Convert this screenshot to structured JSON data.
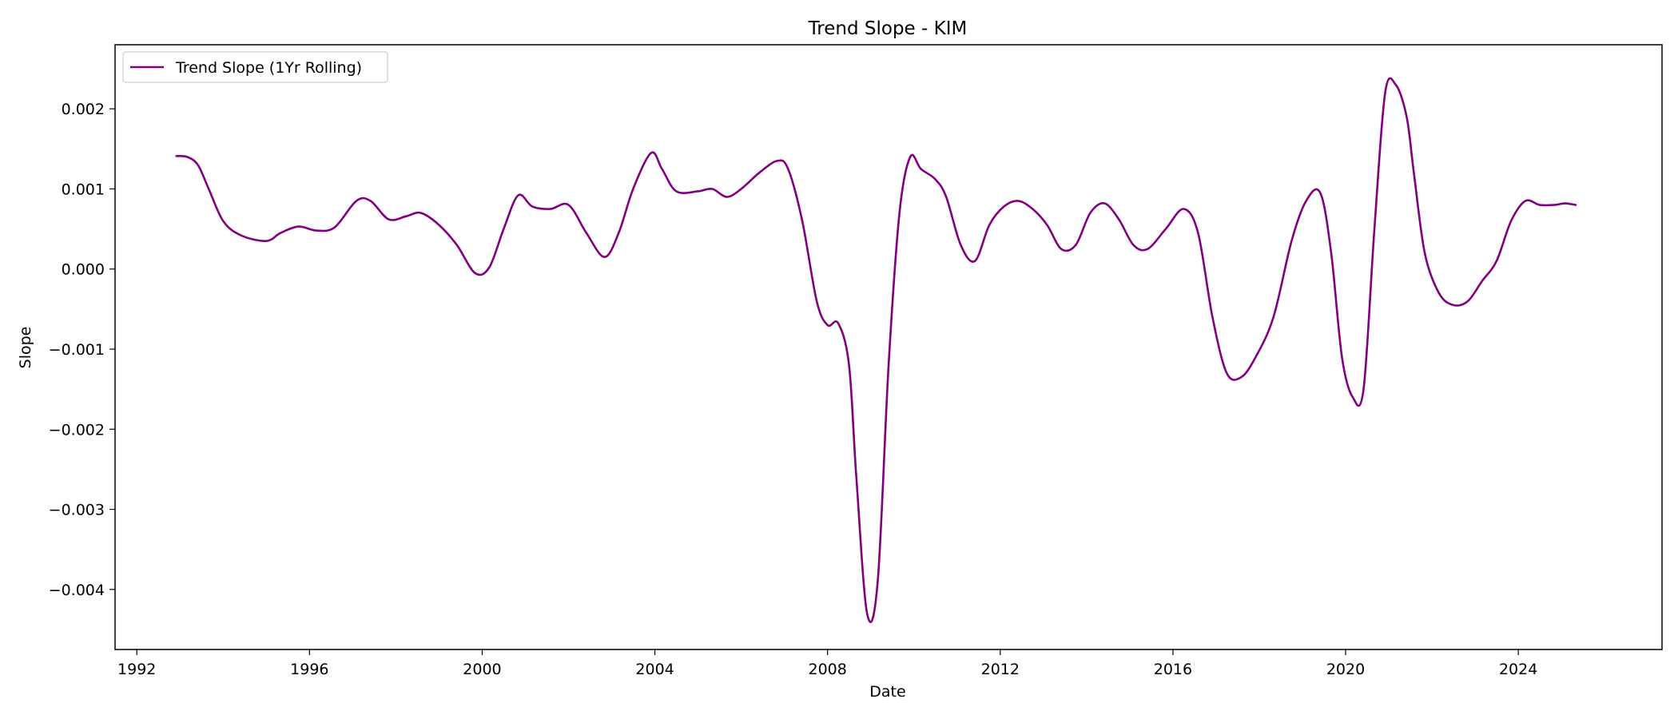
{
  "chart_data": {
    "type": "line",
    "title": "Trend Slope - KIM",
    "xlabel": "Date",
    "ylabel": "Slope",
    "xlim": [
      "1991-07-01",
      "2027-05-01"
    ],
    "ylim": [
      -0.00475,
      0.0028
    ],
    "x_ticks": [
      "1992",
      "1996",
      "2000",
      "2004",
      "2008",
      "2012",
      "2016",
      "2020",
      "2024"
    ],
    "y_ticks": [
      "0.002",
      "0.001",
      "0.000",
      "−0.001",
      "−0.002",
      "−0.003",
      "−0.004"
    ],
    "y_tick_values": [
      0.002,
      0.001,
      0.0,
      -0.001,
      -0.002,
      -0.003,
      -0.004
    ],
    "grid": false,
    "legend_position": "top-left",
    "series": [
      {
        "name": "Trend Slope (1Yr Rolling)",
        "color": "#800080",
        "x": [
          "1992-12-01",
          "1993-03-01",
          "1993-06-01",
          "1993-09-01",
          "1994-01-01",
          "1994-06-01",
          "1995-01-01",
          "1995-05-01",
          "1995-10-01",
          "1996-03-01",
          "1996-08-01",
          "1997-02-01",
          "1997-06-01",
          "1997-11-01",
          "1998-04-01",
          "1998-08-01",
          "1999-01-01",
          "1999-06-01",
          "1999-11-01",
          "2000-03-01",
          "2000-07-01",
          "2000-11-01",
          "2001-03-01",
          "2001-08-01",
          "2002-01-01",
          "2002-06-01",
          "2002-11-01",
          "2003-03-01",
          "2003-07-01",
          "2003-12-01",
          "2004-03-01",
          "2004-07-01",
          "2005-01-01",
          "2005-05-01",
          "2005-09-01",
          "2006-01-01",
          "2006-06-01",
          "2006-11-01",
          "2007-02-01",
          "2007-06-01",
          "2007-10-01",
          "2008-01-01",
          "2008-04-01",
          "2008-07-01",
          "2008-09-01",
          "2008-12-01",
          "2009-03-01",
          "2009-06-01",
          "2009-09-01",
          "2009-12-01",
          "2010-03-01",
          "2010-07-01",
          "2010-10-01",
          "2011-02-01",
          "2011-06-01",
          "2011-10-01",
          "2012-02-01",
          "2012-06-01",
          "2012-10-01",
          "2013-02-01",
          "2013-06-01",
          "2013-10-01",
          "2014-02-01",
          "2014-06-01",
          "2014-10-01",
          "2015-02-01",
          "2015-06-01",
          "2015-11-01",
          "2016-04-01",
          "2016-08-01",
          "2016-12-01",
          "2017-04-01",
          "2017-08-01",
          "2017-12-01",
          "2018-05-01",
          "2018-10-01",
          "2019-02-01",
          "2019-06-01",
          "2019-09-01",
          "2019-12-01",
          "2020-03-01",
          "2020-06-01",
          "2020-09-01",
          "2020-12-01",
          "2021-03-01",
          "2021-06-01",
          "2021-08-01",
          "2021-11-01",
          "2022-03-01",
          "2022-07-01",
          "2022-11-01",
          "2023-03-01",
          "2023-07-01",
          "2023-11-01",
          "2024-03-01",
          "2024-07-01",
          "2024-11-01",
          "2025-02-01",
          "2025-05-01"
        ],
        "y": [
          0.00141,
          0.0014,
          0.0013,
          0.001,
          0.0006,
          0.00042,
          0.00035,
          0.00045,
          0.00053,
          0.00048,
          0.00052,
          0.00085,
          0.00085,
          0.00062,
          0.00066,
          0.0007,
          0.00055,
          0.0003,
          -5e-05,
          2e-05,
          0.0005,
          0.00092,
          0.00078,
          0.00075,
          0.0008,
          0.00045,
          0.00015,
          0.00045,
          0.001,
          0.00145,
          0.00125,
          0.00097,
          0.00097,
          0.001,
          0.0009,
          0.001,
          0.0012,
          0.00135,
          0.00125,
          0.0006,
          -0.0004,
          -0.0007,
          -0.00068,
          -0.0012,
          -0.0026,
          -0.0043,
          -0.0039,
          -0.0012,
          0.0007,
          0.0014,
          0.00125,
          0.00112,
          0.0009,
          0.0003,
          0.0001,
          0.00055,
          0.00078,
          0.00085,
          0.00075,
          0.00055,
          0.00025,
          0.0003,
          0.0007,
          0.00082,
          0.00062,
          0.0003,
          0.00025,
          0.0005,
          0.00075,
          0.00045,
          -0.0006,
          -0.0013,
          -0.00135,
          -0.0011,
          -0.0006,
          0.00035,
          0.00085,
          0.00095,
          0.0002,
          -0.0011,
          -0.0016,
          -0.0015,
          0.0005,
          0.0022,
          0.0023,
          0.0019,
          0.0012,
          0.0002,
          -0.0003,
          -0.00045,
          -0.0004,
          -0.00015,
          0.0001,
          0.0006,
          0.00085,
          0.0008,
          0.0008,
          0.00082,
          0.0008
        ]
      }
    ]
  }
}
